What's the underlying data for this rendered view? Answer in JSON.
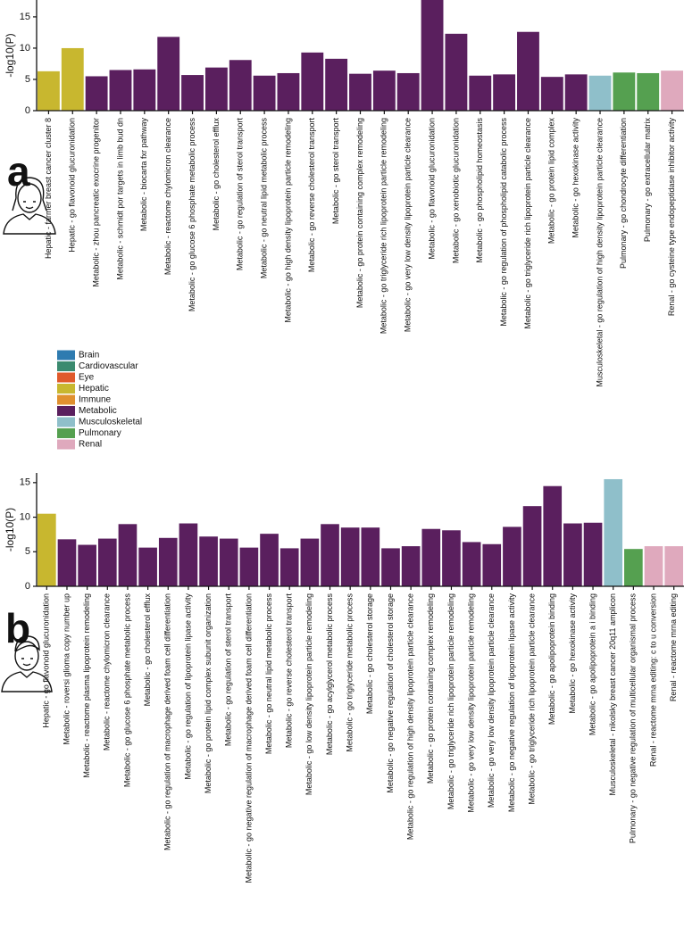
{
  "chart_data": [
    {
      "type": "bar",
      "panel": "a",
      "y_label": "-log10(P)",
      "ylim": [
        0,
        17.7
      ],
      "yticks": [
        0,
        5,
        10,
        15
      ],
      "categories": [
        "Hepatic - farmer breast cancer cluster 8",
        "Hepatic - go flavonoid glucuronidation",
        "Metabolic - zhou pancreatic exocrine progenitor",
        "Metabolic - schmidt por targets in limb bud dn",
        "Metabolic - biocarta fxr pathway",
        "Metabolic - reactome chylomicron clearance",
        "Metabolic - go glucose 6 phosphate metabolic process",
        "Metabolic - go cholesterol efflux",
        "Metabolic - go regulation of sterol transport",
        "Metabolic - go neutral lipid metabolic process",
        "Metabolic - go high density lipoprotein particle remodeling",
        "Metabolic - go reverse cholesterol transport",
        "Metabolic - go sterol transport",
        "Metabolic - go protein containing complex remodeling",
        "Metabolic - go triglyceride rich lipoprotein particle remodeling",
        "Metabolic - go very low density lipoprotein particle clearance",
        "Metabolic - go flavonoid glucuronidation",
        "Metabolic - go xenobiotic glucuronidation",
        "Metabolic - go phospholipid homeostasis",
        "Metabolic - go regulation of phospholipid catabolic process",
        "Metabolic - go triglyceride rich lipoprotein particle clearance",
        "Metabolic - go protein lipid complex",
        "Metabolic - go hexokinase activity",
        "Musculoskeletal - go regulation of high density lipoprotein particle clearance",
        "Pulmonary - go chondrocyte differentiation",
        "Pulmonary - go extracellular matrix",
        "Renal - go cysteine type endopeptidase inhibitor activity"
      ],
      "values": [
        6.3,
        10,
        5.5,
        6.5,
        6.6,
        11.8,
        5.7,
        6.9,
        8.1,
        5.6,
        6.0,
        9.3,
        8.3,
        5.9,
        6.4,
        6.0,
        17.7,
        12.3,
        5.6,
        5.8,
        12.6,
        5.4,
        5.8,
        5.6,
        6.1,
        6.0,
        6.4
      ],
      "colors": [
        "#c8b72f",
        "#c8b72f",
        "#5a1f5e",
        "#5a1f5e",
        "#5a1f5e",
        "#5a1f5e",
        "#5a1f5e",
        "#5a1f5e",
        "#5a1f5e",
        "#5a1f5e",
        "#5a1f5e",
        "#5a1f5e",
        "#5a1f5e",
        "#5a1f5e",
        "#5a1f5e",
        "#5a1f5e",
        "#5a1f5e",
        "#5a1f5e",
        "#5a1f5e",
        "#5a1f5e",
        "#5a1f5e",
        "#5a1f5e",
        "#5a1f5e",
        "#8fbfca",
        "#55a050",
        "#55a050",
        "#dfa9bd"
      ],
      "legend": [
        {
          "name": "Brain",
          "color": "#2e7bb0"
        },
        {
          "name": "Cardiovascular",
          "color": "#3a8a6f"
        },
        {
          "name": "Eye",
          "color": "#e05a2b"
        },
        {
          "name": "Hepatic",
          "color": "#c8b72f"
        },
        {
          "name": "Immune",
          "color": "#e0902f"
        },
        {
          "name": "Metabolic",
          "color": "#5a1f5e"
        },
        {
          "name": "Musculoskeletal",
          "color": "#8fbfca"
        },
        {
          "name": "Pulmonary",
          "color": "#55a050"
        },
        {
          "name": "Renal",
          "color": "#dfa9bd"
        }
      ]
    },
    {
      "type": "bar",
      "panel": "b",
      "y_label": "-log10(P)",
      "ylim": [
        0,
        16.4
      ],
      "yticks": [
        0,
        5,
        10,
        15
      ],
      "categories": [
        "Hepatic - go flavonoid glucuronidation",
        "Metabolic - roversi glioma copy number up",
        "Metabolic - reactome plasma lipoprotein remodeling",
        "Metabolic - reactome chylomicron clearance",
        "Metabolic - go glucose 6 phosphate metabolic process",
        "Metabolic - go cholesterol efflux",
        "Metabolic - go regulation of macrophage derived foam cell differentiation",
        "Metabolic - go regulation of lipoprotein lipase activity",
        "Metabolic - go protein lipid complex subunit organization",
        "Metabolic - go regulation of sterol transport",
        "Metabolic - go negative regulation of macrophage derived foam cell differentiation",
        "Metabolic - go neutral lipid metabolic process",
        "Metabolic - go reverse cholesterol transport",
        "Metabolic - go low density lipoprotein particle remodeling",
        "Metabolic - go acylglycerol metabolic process",
        "Metabolic - go triglyceride metabolic process",
        "Metabolic - go cholesterol storage",
        "Metabolic - go negative regulation of cholesterol storage",
        "Metabolic - go regulation of high density lipoprotein particle clearance",
        "Metabolic - go protein containing complex remodeling",
        "Metabolic - go triglyceride rich lipoprotein particle remodeling",
        "Metabolic - go very low density lipoprotein particle remodeling",
        "Metabolic - go very low density lipoprotein particle clearance",
        "Metabolic - go negative regulation of lipoprotein lipase activity",
        "Metabolic - go triglyceride rich lipoprotein particle clearance",
        "Metabolic - go apolipoprotein binding",
        "Metabolic - go hexokinase activity",
        "Metabolic - go apolipoprotein a i binding",
        "Musculoskeletal - nikolsky breast cancer 20q11 amplicon",
        "Pulmonary - go negative regulation of multicellular organismal process",
        "Renal - reactome mrna editing: c to u conversion",
        "Renal - reactome mrna editing"
      ],
      "values": [
        10.5,
        6.8,
        6.0,
        6.9,
        9.0,
        5.6,
        7.0,
        9.1,
        7.2,
        6.9,
        5.6,
        7.6,
        5.5,
        6.9,
        9.0,
        8.5,
        8.5,
        5.5,
        5.8,
        8.3,
        8.1,
        6.4,
        6.1,
        8.6,
        11.6,
        14.5,
        9.1,
        9.2,
        15.5,
        5.4,
        5.8,
        5.8
      ],
      "colors": [
        "#c8b72f",
        "#5a1f5e",
        "#5a1f5e",
        "#5a1f5e",
        "#5a1f5e",
        "#5a1f5e",
        "#5a1f5e",
        "#5a1f5e",
        "#5a1f5e",
        "#5a1f5e",
        "#5a1f5e",
        "#5a1f5e",
        "#5a1f5e",
        "#5a1f5e",
        "#5a1f5e",
        "#5a1f5e",
        "#5a1f5e",
        "#5a1f5e",
        "#5a1f5e",
        "#5a1f5e",
        "#5a1f5e",
        "#5a1f5e",
        "#5a1f5e",
        "#5a1f5e",
        "#5a1f5e",
        "#5a1f5e",
        "#5a1f5e",
        "#5a1f5e",
        "#8fbfca",
        "#55a050",
        "#dfa9bd",
        "#dfa9bd"
      ]
    }
  ]
}
